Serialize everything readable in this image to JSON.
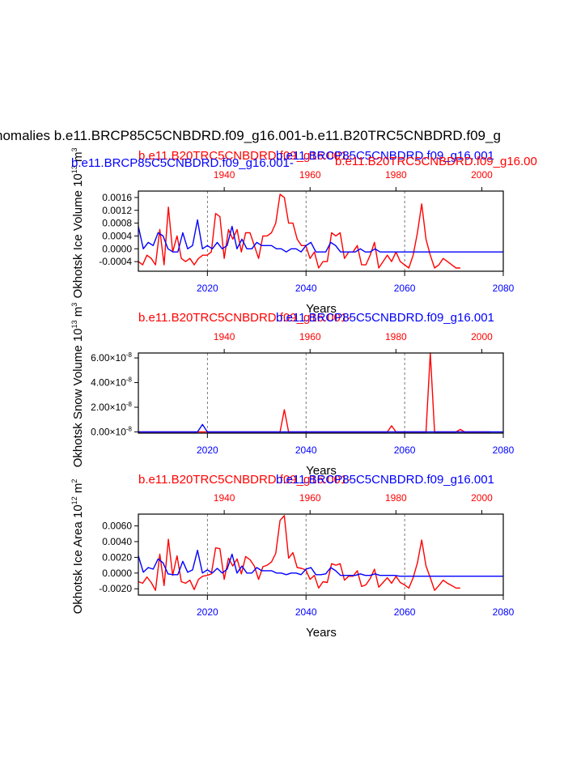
{
  "page_title": "nomalies b.e11.BRCP85C5CNBDRD.f09_g16.001-b.e11.B20TRC5CNBDRD.f09_g",
  "colors": {
    "red": "#ff0000",
    "blue": "#0000ff",
    "black": "#000000"
  },
  "chart_data": [
    {
      "type": "line",
      "title_red": "b.e11.B20TRC5CNBDRD.f09_g16.001-",
      "title_blue": "b.e11.BRCP85C5CNBDRD.f09_g16.001",
      "extra_red": "b.e11.B20TRC5CNBDRD.f09_g16.00",
      "extra_blue": "b.e11.BRCP85C5CNBDRD.f09_g16.001-",
      "ylabel_main": "Okhotsk Ice Volume 10",
      "ylabel_exp": "13",
      "ylabel_unit": " m",
      "ylabel_unit_exp": "3",
      "xlabel": "Years",
      "bottom_ticks": [
        "2020",
        "2040",
        "2060",
        "2080"
      ],
      "top_ticks": [
        "1940",
        "1960",
        "1980",
        "2000"
      ],
      "y_ticks": [
        "0.0016",
        "0.0012",
        "0.0008",
        "0.0004",
        "0.0000",
        "-0.0004"
      ],
      "ylim": [
        -0.0007,
        0.0018
      ],
      "xlim": [
        2006,
        2080
      ],
      "top_xlim": [
        1920,
        2005
      ],
      "series": [
        {
          "color": "red",
          "axis": "top",
          "x_start": 1920,
          "values": [
            -0.0004,
            -0.0005,
            -0.0002,
            -0.0003,
            -0.0005,
            0.0006,
            -0.0005,
            0.0013,
            -0.0001,
            0.0004,
            -0.0003,
            -0.0004,
            -0.0003,
            -0.0005,
            -0.0003,
            -0.0002,
            -0.0002,
            -0.0001,
            0.0011,
            0.001,
            -0.0003,
            0.0006,
            0.0003,
            0.0006,
            -0.0001,
            0.0005,
            0.0005,
            0.0001,
            -0.0003,
            0.0004,
            0.0004,
            0.0005,
            0.0008,
            0.0017,
            0.0016,
            0.0008,
            0.0008,
            0.0003,
            0.0001,
            0.0001,
            -0.0003,
            -0.0001,
            -0.0006,
            -0.0004,
            -0.0004,
            0.0005,
            0.0004,
            0.0005,
            -0.0003,
            -0.0001,
            -0.0001,
            0.0001,
            -0.0005,
            -0.0005,
            -0.0002,
            0.0002,
            -0.0006,
            -0.0004,
            -0.0002,
            -0.0004,
            -0.0001,
            -0.0004,
            -0.0005,
            -0.0006,
            -0.0002,
            0.0005,
            0.0014,
            0.0003,
            -0.0002,
            -0.0006,
            -0.0005,
            -0.0003,
            -0.0004,
            -0.0005,
            -0.0006,
            -0.0006
          ]
        },
        {
          "color": "blue",
          "axis": "bottom",
          "x_start": 2006,
          "values": [
            0.0007,
            0.0,
            0.0002,
            0.0001,
            0.0005,
            0.0004,
            0.0,
            -0.0001,
            -0.0001,
            0.0005,
            0.0,
            0.0001,
            0.0009,
            0.0,
            0.0001,
            0.0,
            0.0002,
            0.0,
            0.0001,
            0.0007,
            0.0,
            0.0003,
            0.0,
            0.0,
            0.0002,
            0.0001,
            0.0001,
            0.0001,
            0.0,
            0.0,
            -0.0001,
            0.0,
            0.0,
            -0.0001,
            0.0001,
            0.0002,
            -0.0001,
            -0.0001,
            -0.0001,
            0.0002,
            0.0001,
            -0.0001,
            -0.0001,
            -0.0001,
            -0.0001,
            0.0,
            -0.0001,
            -0.0001,
            0.0,
            -0.0001,
            -0.0001,
            -0.0001,
            -0.0001,
            -0.0001,
            -0.0001,
            -0.0001,
            -0.0001,
            -0.0001,
            -0.0001,
            -0.0001,
            -0.0001,
            -0.0001,
            -0.0001,
            -0.0001,
            -0.0001,
            -0.0001,
            -0.0001,
            -0.0001,
            -0.0001,
            -0.0001,
            -0.0001,
            -0.0001,
            -0.0001,
            -0.0001,
            -0.0001
          ]
        }
      ]
    },
    {
      "type": "line",
      "title_red": "b.e11.B20TRC5CNBDRD.f09_g16.001-",
      "title_blue": "b.e11.BRCP85C5CNBDRD.f09_g16.001",
      "ylabel_main": "Okhotsk Snow Volume 10",
      "ylabel_exp": "13",
      "ylabel_unit": " m",
      "ylabel_unit_exp": "3",
      "xlabel": "Years",
      "bottom_ticks": [
        "2020",
        "2040",
        "2060",
        "2080"
      ],
      "top_ticks": [
        "1940",
        "1960",
        "1980",
        "2000"
      ],
      "y_tick_values": [
        0,
        2e-08,
        4e-08,
        6e-08
      ],
      "y_tick_mantissa": [
        "0.00",
        "2.00",
        "4.00",
        "6.00"
      ],
      "y_tick_times": "×10",
      "y_tick_exp": "-8",
      "ylim": [
        -1e-09,
        6.4e-08
      ],
      "xlim": [
        2006,
        2080
      ],
      "top_xlim": [
        1920,
        2005
      ],
      "series": [
        {
          "color": "red",
          "axis": "top",
          "x_start": 1920,
          "values": [
            0,
            0,
            0,
            0,
            0,
            0,
            0,
            0,
            0,
            0,
            0,
            0,
            0,
            0,
            0,
            0,
            0,
            0,
            0,
            0,
            0,
            0,
            0,
            0,
            0,
            0,
            0,
            0,
            0,
            0,
            0,
            0,
            0,
            0,
            1.8e-08,
            0,
            0,
            0,
            0,
            0,
            0,
            0,
            0,
            0,
            0,
            0,
            0,
            0,
            0,
            0,
            0,
            0,
            0,
            0,
            0,
            0,
            0,
            0,
            0,
            5e-09,
            0,
            0,
            0,
            0,
            0,
            0,
            0,
            0,
            6.4e-08,
            0,
            0,
            0,
            0,
            0,
            0,
            2e-09,
            0,
            0,
            0,
            0,
            0,
            0,
            0
          ]
        },
        {
          "color": "blue",
          "axis": "bottom",
          "x_start": 2006,
          "values": [
            0,
            0,
            0,
            0,
            0,
            0,
            0,
            0,
            0,
            0,
            0,
            0,
            0,
            6e-09,
            0,
            0,
            0,
            0,
            0,
            0,
            0,
            0,
            0,
            0,
            0,
            0,
            0,
            0,
            0,
            0,
            0,
            0,
            0,
            0,
            0,
            0,
            0,
            0,
            0,
            0,
            0,
            0,
            0,
            0,
            0,
            0,
            0,
            0,
            0,
            0,
            0,
            0,
            0,
            0,
            0,
            0,
            0,
            0,
            0,
            0,
            0,
            0,
            0,
            0,
            0,
            0,
            0,
            0,
            0,
            0,
            0,
            0,
            0,
            0,
            0
          ]
        }
      ]
    },
    {
      "type": "line",
      "title_red": "b.e11.B20TRC5CNBDRD.f09_g16.001-",
      "title_blue": "b.e11.BRCP85C5CNBDRD.f09_g16.001",
      "ylabel_main": "Okhotsk Ice Area 10",
      "ylabel_exp": "12",
      "ylabel_unit": " m",
      "ylabel_unit_exp": "2",
      "xlabel": "Years",
      "bottom_ticks": [
        "2020",
        "2040",
        "2060",
        "2080"
      ],
      "top_ticks": [
        "1940",
        "1960",
        "1980",
        "2000"
      ],
      "y_ticks": [
        "0.0060",
        "0.0040",
        "0.0020",
        "0.0000",
        "-0.0020"
      ],
      "ylim": [
        -0.0028,
        0.0075
      ],
      "xlim": [
        2006,
        2080
      ],
      "top_xlim": [
        1920,
        2005
      ],
      "series": [
        {
          "color": "red",
          "axis": "top",
          "x_start": 1920,
          "values": [
            -0.0011,
            -0.0013,
            -0.0005,
            -0.0012,
            -0.0022,
            0.0024,
            -0.0016,
            0.0043,
            -0.0003,
            0.0022,
            -0.0011,
            -0.0013,
            -0.0009,
            -0.0021,
            -0.0008,
            -0.0004,
            -0.0003,
            -0.0001,
            0.0032,
            0.0031,
            -0.0008,
            0.0019,
            0.0009,
            0.0018,
            -0.0001,
            0.0021,
            0.0017,
            0.0009,
            -0.0008,
            0.0008,
            0.001,
            0.0014,
            0.0025,
            0.0067,
            0.0073,
            0.0019,
            0.0026,
            0.0007,
            0.0006,
            0.0004,
            -0.0008,
            -0.0003,
            -0.0019,
            -0.0011,
            -0.0012,
            0.0012,
            0.001,
            0.0012,
            -0.0009,
            -0.0004,
            -0.0004,
            0.0003,
            -0.0017,
            -0.0015,
            -0.0007,
            0.0005,
            -0.0018,
            -0.0012,
            -0.0006,
            -0.0013,
            -0.0004,
            -0.0012,
            -0.0015,
            -0.0019,
            -0.0006,
            0.0013,
            0.0042,
            0.0009,
            -0.0006,
            -0.0022,
            -0.0016,
            -0.0009,
            -0.0013,
            -0.0016,
            -0.0019,
            -0.0019
          ]
        },
        {
          "color": "blue",
          "axis": "bottom",
          "x_start": 2006,
          "values": [
            0.0022,
            0.0001,
            0.0007,
            0.0005,
            0.0018,
            0.0013,
            -0.0001,
            -0.0002,
            -0.0002,
            0.0015,
            0.0001,
            0.0004,
            0.0029,
            0.0,
            0.0004,
            0.0,
            0.0006,
            0.0,
            0.0005,
            0.0024,
            0.0,
            0.0009,
            0.0,
            0.0,
            0.0007,
            0.0003,
            0.0003,
            0.0003,
            0.0,
            0.0,
            -0.0002,
            0.0,
            0.0,
            -0.0002,
            0.0005,
            0.0007,
            -0.0002,
            -0.0002,
            -0.0001,
            0.0007,
            0.0003,
            -0.0003,
            -0.0003,
            -0.0003,
            -0.0003,
            -0.0001,
            -0.0003,
            -0.0003,
            -0.0001,
            -0.0003,
            -0.0003,
            -0.0003,
            -0.0003,
            -0.0004,
            -0.0004,
            -0.0004,
            -0.0004,
            -0.0004,
            -0.0004,
            -0.0004,
            -0.0004,
            -0.0004,
            -0.0004,
            -0.0004,
            -0.0004,
            -0.0004,
            -0.0004,
            -0.0004,
            -0.0004,
            -0.0004,
            -0.0004,
            -0.0004,
            -0.0004,
            -0.0004,
            -0.0004
          ]
        }
      ]
    }
  ]
}
